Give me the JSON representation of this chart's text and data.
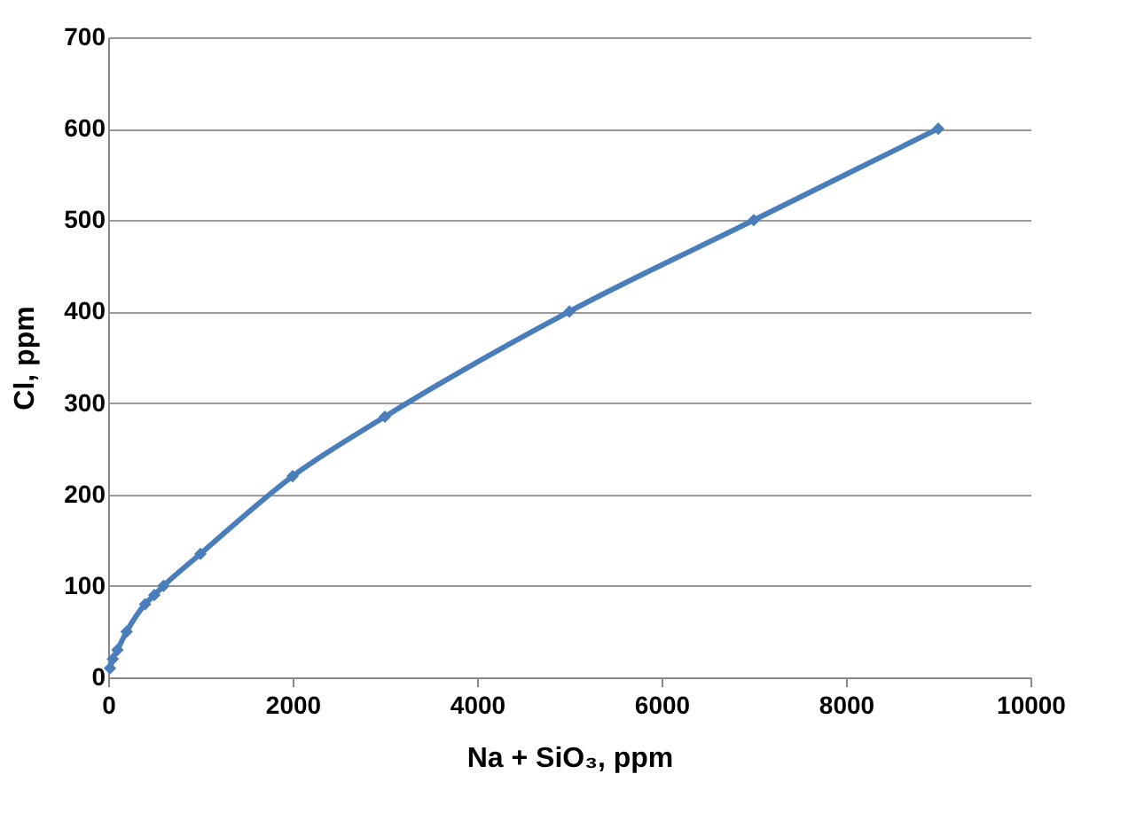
{
  "chart_data": {
    "type": "line",
    "xlabel": "Na + SiO₃, ppm",
    "ylabel": "Cl, ppm",
    "x": [
      20,
      50,
      100,
      200,
      400,
      500,
      600,
      1000,
      2000,
      3000,
      5000,
      7000,
      9000
    ],
    "series": [
      {
        "color": "#4a7ebb",
        "values": [
          10,
          20,
          30,
          50,
          80,
          90,
          100,
          135,
          220,
          285,
          400,
          500,
          600
        ]
      }
    ],
    "xlim": [
      0,
      10000
    ],
    "xticks": [
      0,
      2000,
      4000,
      6000,
      8000,
      10000
    ],
    "ylim": [
      0,
      700
    ],
    "yticks": [
      0,
      100,
      200,
      300,
      400,
      500,
      600,
      700
    ],
    "grid": "y",
    "marker": "diamond",
    "line_style": "solid"
  }
}
